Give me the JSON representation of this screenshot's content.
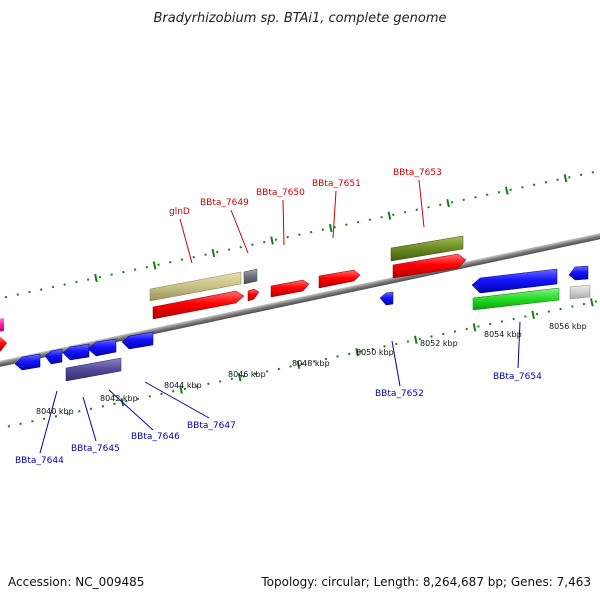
{
  "title": "Bradyrhizobium sp. BTAi1, complete genome",
  "footer": {
    "accession": "Accession: NC_009485",
    "summary": "Topology: circular; Length: 8,264,687 bp; Genes: 7,463"
  },
  "colors": {
    "forward_label": "#cc0000",
    "reverse_label": "#0000aa",
    "backbone": "#8a8a8a",
    "ticks": "#1a7a1a"
  },
  "scale_labels": [
    "8040 kbp",
    "8042 kbp",
    "8044 kbp",
    "8046 kbp",
    "8048 kbp",
    "8050 kbp",
    "8052 kbp",
    "8054 kbp",
    "8056 kbp"
  ],
  "forward_gene_labels": [
    "glnD",
    "BBta_7649",
    "BBta_7650",
    "BBta_7651",
    "BBta_7653"
  ],
  "reverse_gene_labels": [
    "BBta_7644",
    "BBta_7645",
    "BBta_7646",
    "BBta_7647",
    "BBta_7652",
    "BBta_7654"
  ]
}
